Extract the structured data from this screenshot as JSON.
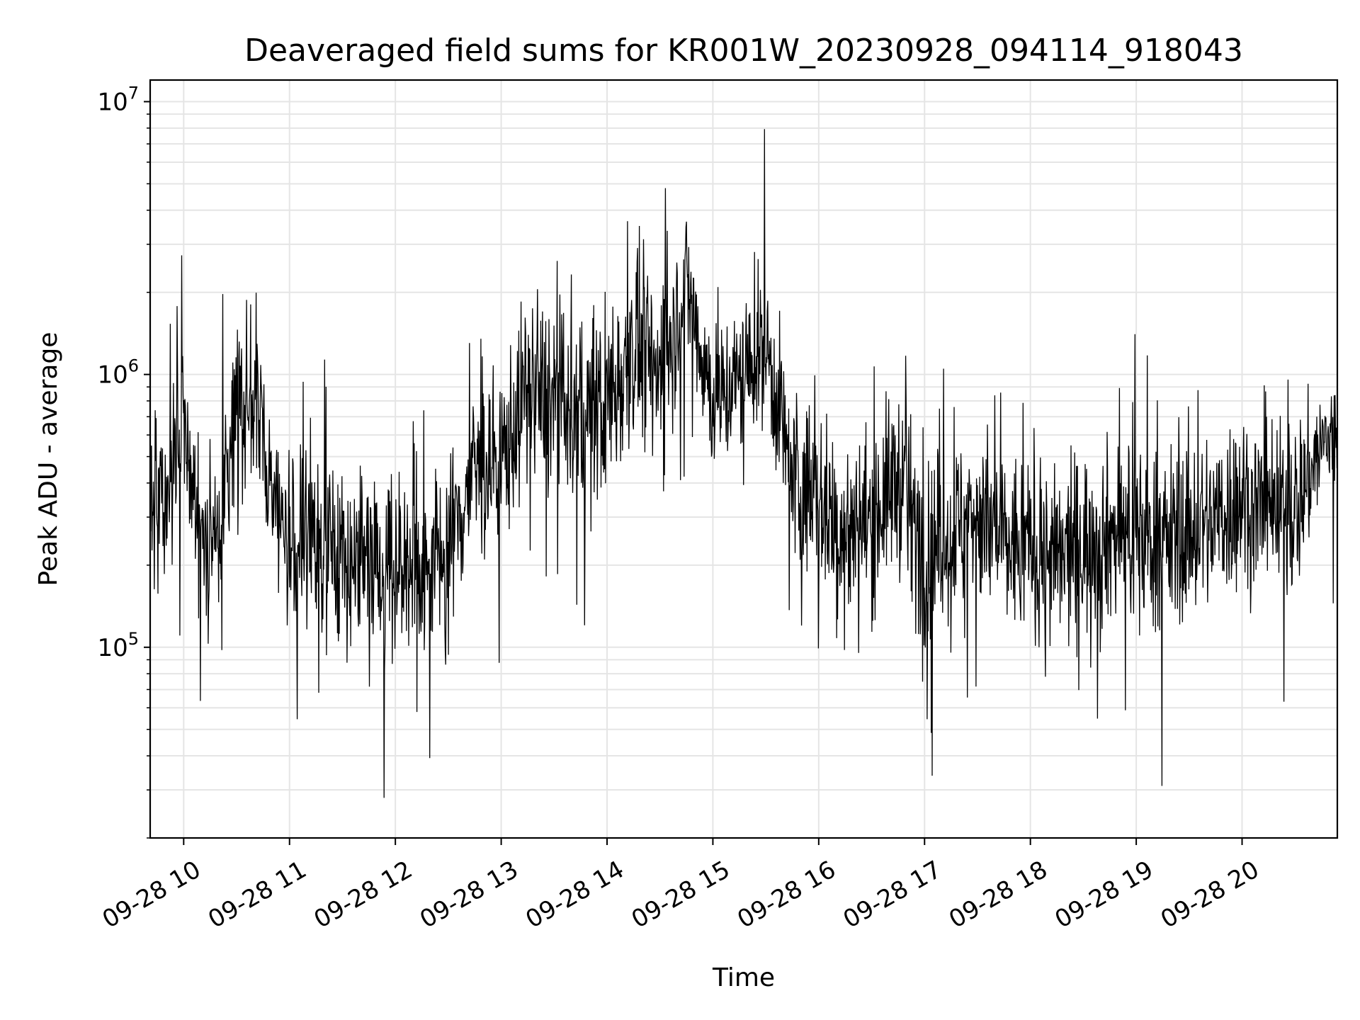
{
  "chart_data": {
    "type": "line",
    "title": "Deaveraged field sums for KR001W_20230928_094114_918043",
    "xlabel": "Time",
    "ylabel": "Peak ADU - average",
    "yscale": "log",
    "ylim": [
      20000,
      12000000
    ],
    "xlim": [
      "2023-09-28 09:41",
      "2023-09-28 20:54"
    ],
    "grid": true,
    "line_color": "#000000",
    "grid_color": "#e5e5e5",
    "x_ticks": [
      {
        "label": "09-28 10",
        "time": "2023-09-28 10:00"
      },
      {
        "label": "09-28 11",
        "time": "2023-09-28 11:00"
      },
      {
        "label": "09-28 12",
        "time": "2023-09-28 12:00"
      },
      {
        "label": "09-28 13",
        "time": "2023-09-28 13:00"
      },
      {
        "label": "09-28 14",
        "time": "2023-09-28 14:00"
      },
      {
        "label": "09-28 15",
        "time": "2023-09-28 15:00"
      },
      {
        "label": "09-28 16",
        "time": "2023-09-28 16:00"
      },
      {
        "label": "09-28 17",
        "time": "2023-09-28 17:00"
      },
      {
        "label": "09-28 18",
        "time": "2023-09-28 18:00"
      },
      {
        "label": "09-28 19",
        "time": "2023-09-28 19:00"
      },
      {
        "label": "09-28 20",
        "time": "2023-09-28 20:00"
      }
    ],
    "y_ticks": [
      {
        "base": "10",
        "exp": "5",
        "value": 100000
      },
      {
        "base": "10",
        "exp": "6",
        "value": 1000000
      },
      {
        "base": "10",
        "exp": "7",
        "value": 10000000
      }
    ],
    "series": [
      {
        "name": "",
        "note_envelope": "approximate level and spread of a dense noisy signal, read at key times",
        "x": [
          "2023-09-28 09:41",
          "2023-09-28 09:50",
          "2023-09-28 10:00",
          "2023-09-28 10:10",
          "2023-09-28 10:20",
          "2023-09-28 10:30",
          "2023-09-28 10:40",
          "2023-09-28 10:50",
          "2023-09-28 11:00",
          "2023-09-28 11:15",
          "2023-09-28 11:30",
          "2023-09-28 11:45",
          "2023-09-28 12:00",
          "2023-09-28 12:15",
          "2023-09-28 12:30",
          "2023-09-28 12:45",
          "2023-09-28 13:00",
          "2023-09-28 13:15",
          "2023-09-28 13:30",
          "2023-09-28 13:45",
          "2023-09-28 14:00",
          "2023-09-28 14:15",
          "2023-09-28 14:30",
          "2023-09-28 14:45",
          "2023-09-28 15:00",
          "2023-09-28 15:15",
          "2023-09-28 15:30",
          "2023-09-28 15:45",
          "2023-09-28 16:00",
          "2023-09-28 16:15",
          "2023-09-28 16:30",
          "2023-09-28 16:45",
          "2023-09-28 17:00",
          "2023-09-28 17:15",
          "2023-09-28 17:30",
          "2023-09-28 17:45",
          "2023-09-28 18:00",
          "2023-09-28 18:15",
          "2023-09-28 18:30",
          "2023-09-28 18:45",
          "2023-09-28 19:00",
          "2023-09-28 19:15",
          "2023-09-28 19:30",
          "2023-09-28 19:45",
          "2023-09-28 20:00",
          "2023-09-28 20:15",
          "2023-09-28 20:30",
          "2023-09-28 20:45",
          "2023-09-28 20:54"
        ],
        "values": [
          350000,
          330000,
          650000,
          230000,
          250000,
          800000,
          900000,
          380000,
          240000,
          250000,
          200000,
          240000,
          180000,
          200000,
          230000,
          450000,
          480000,
          900000,
          800000,
          650000,
          800000,
          1300000,
          1000000,
          2200000,
          800000,
          950000,
          1300000,
          420000,
          350000,
          250000,
          300000,
          420000,
          220000,
          260000,
          320000,
          230000,
          240000,
          200000,
          240000,
          260000,
          270000,
          240000,
          270000,
          290000,
          360000,
          300000,
          320000,
          550000,
          600000
        ],
        "spread": [
          6,
          5,
          5,
          5,
          5,
          6,
          7,
          5,
          6,
          6,
          6,
          6,
          7,
          6,
          6,
          6,
          6,
          6,
          7,
          6,
          7,
          6,
          6,
          5,
          5,
          5,
          5,
          6,
          6,
          6,
          6,
          6,
          6,
          6,
          6,
          6,
          6,
          6,
          6,
          6,
          6,
          6,
          6,
          6,
          6,
          6,
          6,
          4,
          4
        ]
      }
    ]
  }
}
